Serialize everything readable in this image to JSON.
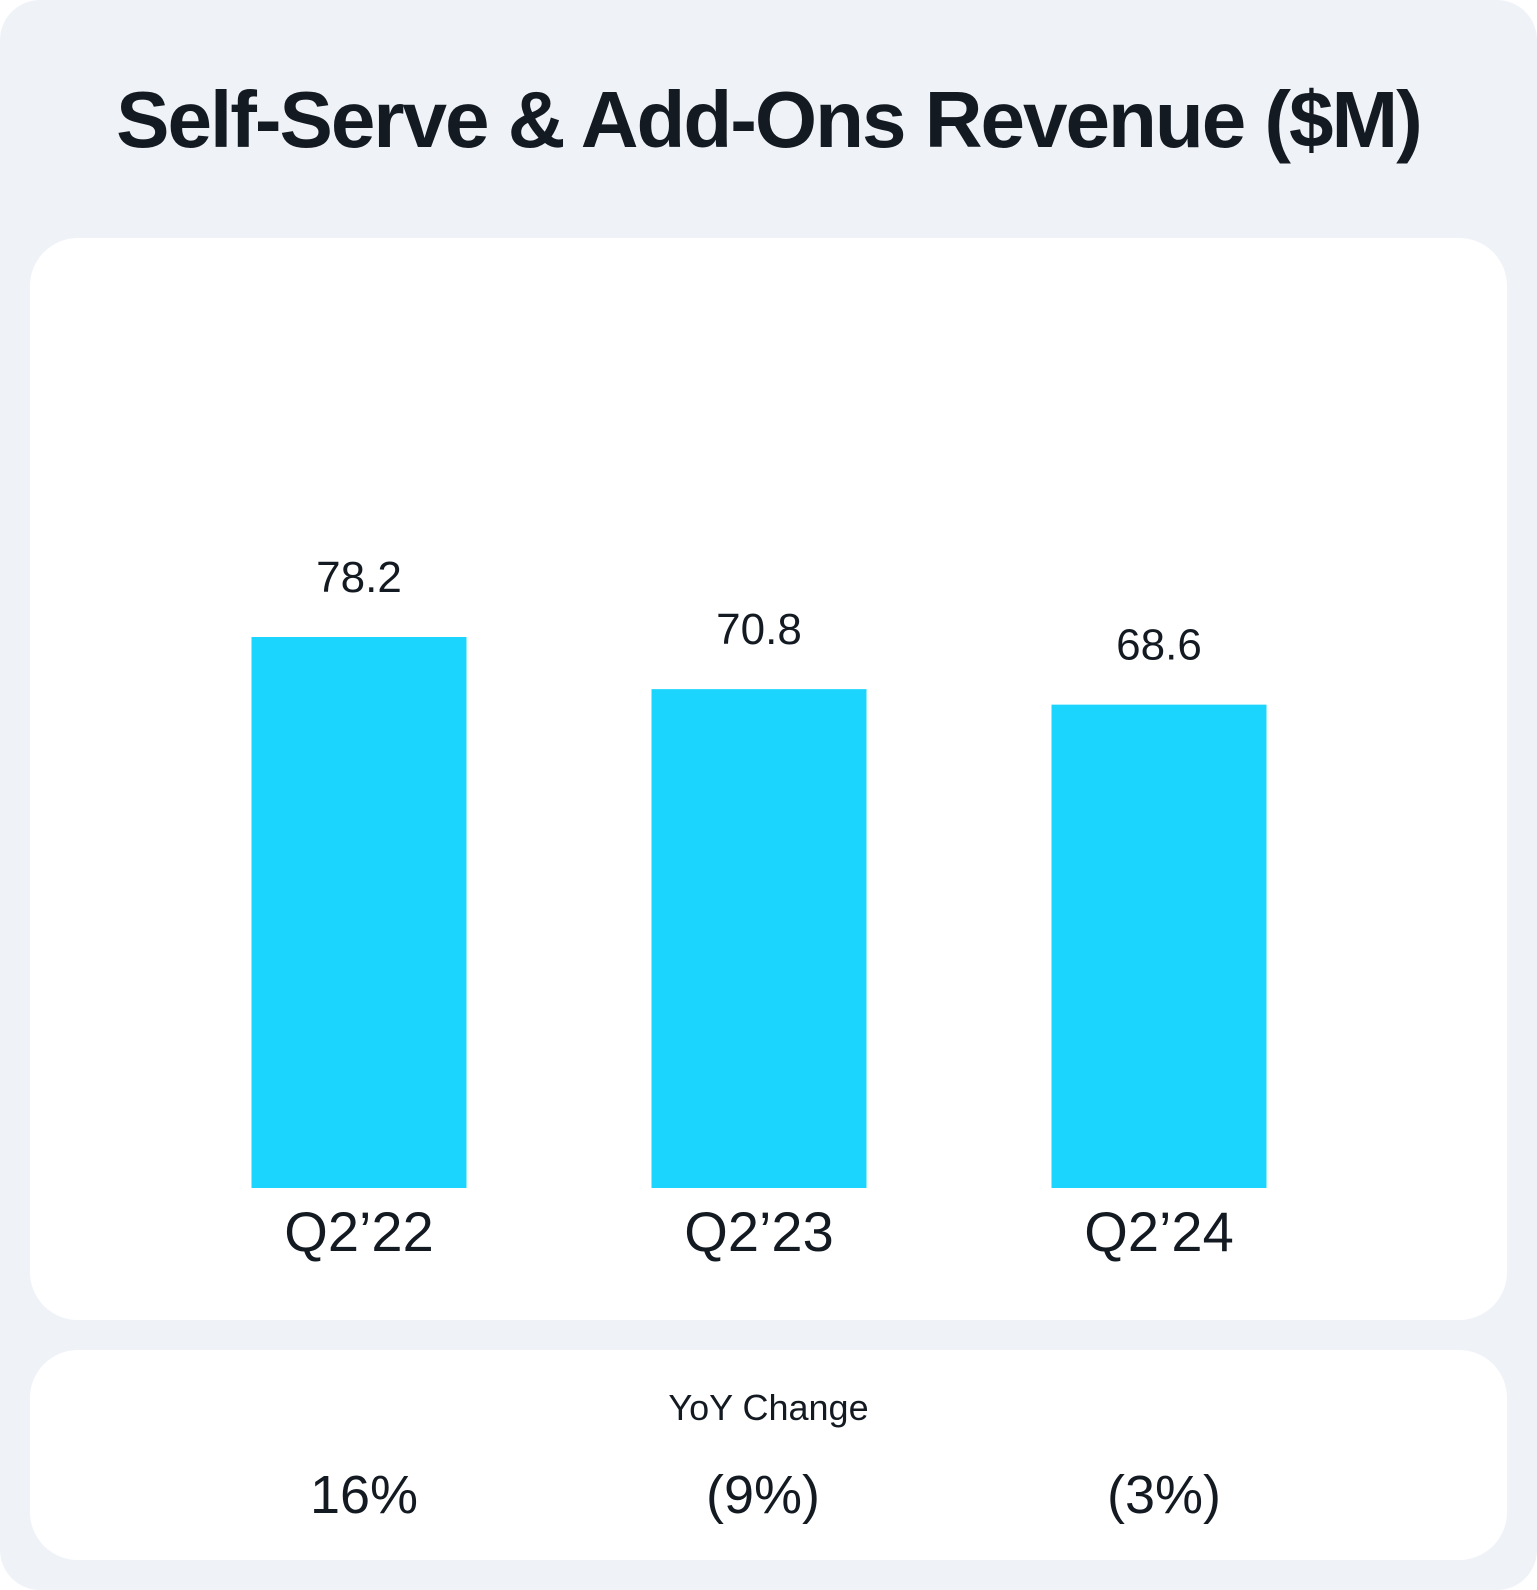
{
  "title": "Self-Serve & Add-Ons Revenue ($M)",
  "chart_data": {
    "type": "bar",
    "title": "Self-Serve & Add-Ons Revenue ($M)",
    "categories": [
      "Q2’22",
      "Q2’23",
      "Q2’24"
    ],
    "values": [
      78.2,
      70.8,
      68.6
    ],
    "value_labels": [
      "78.2",
      "70.8",
      "68.6"
    ],
    "xlabel": "",
    "ylabel": "",
    "ylim": [
      0,
      78.2
    ],
    "grid": false,
    "bar_color": "#1bd5ff"
  },
  "yoy": {
    "label": "YoY Change",
    "values": [
      "16%",
      "(9%)",
      "(3%)"
    ]
  },
  "colors": {
    "background": "#eff3f8",
    "panel": "#ffffff",
    "text": "#141a22",
    "bar": "#1bd5ff"
  }
}
